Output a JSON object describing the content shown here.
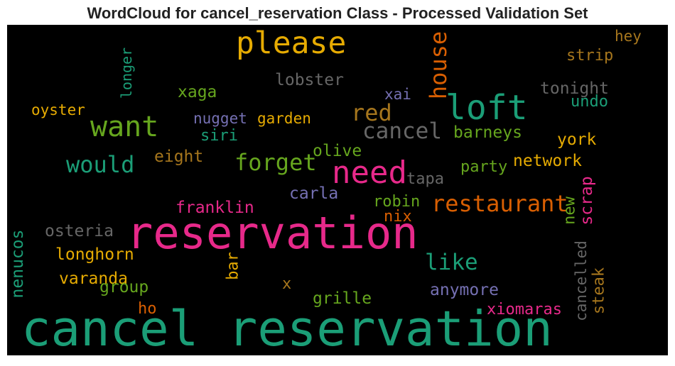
{
  "title": "WordCloud for cancel_reservation Class - Processed Validation Set",
  "words": [
    {
      "text": "cancel reservation",
      "color": "#1b9e77"
    },
    {
      "text": "reservation",
      "color": "#e7298a"
    },
    {
      "text": "please",
      "color": "#e6ab02"
    },
    {
      "text": "loft",
      "color": "#1b9e77"
    },
    {
      "text": "need",
      "color": "#e7298a"
    },
    {
      "text": "want",
      "color": "#66a61e"
    },
    {
      "text": "house",
      "color": "#d95f02"
    },
    {
      "text": "cancel",
      "color": "#666666"
    },
    {
      "text": "red",
      "color": "#a6761d"
    },
    {
      "text": "would",
      "color": "#1b9e77"
    },
    {
      "text": "forget",
      "color": "#66a61e"
    },
    {
      "text": "restaurant",
      "color": "#d95f02"
    },
    {
      "text": "like",
      "color": "#1b9e77"
    },
    {
      "text": "lobster",
      "color": "#666666"
    },
    {
      "text": "tonight",
      "color": "#666666"
    },
    {
      "text": "hey",
      "color": "#a6761d"
    },
    {
      "text": "strip",
      "color": "#a6761d"
    },
    {
      "text": "longer",
      "color": "#1b9e77"
    },
    {
      "text": "xaga",
      "color": "#66a61e"
    },
    {
      "text": "xai",
      "color": "#7570b3"
    },
    {
      "text": "oyster",
      "color": "#e6ab02"
    },
    {
      "text": "nugget",
      "color": "#7570b3"
    },
    {
      "text": "garden",
      "color": "#e6ab02"
    },
    {
      "text": "siri",
      "color": "#1b9e77"
    },
    {
      "text": "undo",
      "color": "#1b9e77"
    },
    {
      "text": "barneys",
      "color": "#66a61e"
    },
    {
      "text": "york",
      "color": "#e6ab02"
    },
    {
      "text": "eight",
      "color": "#a6761d"
    },
    {
      "text": "olive",
      "color": "#66a61e"
    },
    {
      "text": "network",
      "color": "#e6ab02"
    },
    {
      "text": "party",
      "color": "#66a61e"
    },
    {
      "text": "tapa",
      "color": "#666666"
    },
    {
      "text": "carla",
      "color": "#7570b3"
    },
    {
      "text": "robin",
      "color": "#66a61e"
    },
    {
      "text": "new",
      "color": "#66a61e"
    },
    {
      "text": "scrap",
      "color": "#e7298a"
    },
    {
      "text": "franklin",
      "color": "#e7298a"
    },
    {
      "text": "nix",
      "color": "#d95f02"
    },
    {
      "text": "osteria",
      "color": "#666666"
    },
    {
      "text": "nenucos",
      "color": "#1b9e77"
    },
    {
      "text": "longhorn",
      "color": "#e6ab02"
    },
    {
      "text": "bar",
      "color": "#e6ab02"
    },
    {
      "text": "cancelled",
      "color": "#666666"
    },
    {
      "text": "steak",
      "color": "#a6761d"
    },
    {
      "text": "varanda",
      "color": "#e6ab02"
    },
    {
      "text": "group",
      "color": "#66a61e"
    },
    {
      "text": "x",
      "color": "#a6761d"
    },
    {
      "text": "anymore",
      "color": "#7570b3"
    },
    {
      "text": "grille",
      "color": "#66a61e"
    },
    {
      "text": "ho",
      "color": "#d95f02"
    },
    {
      "text": "xiomaras",
      "color": "#e7298a"
    }
  ]
}
